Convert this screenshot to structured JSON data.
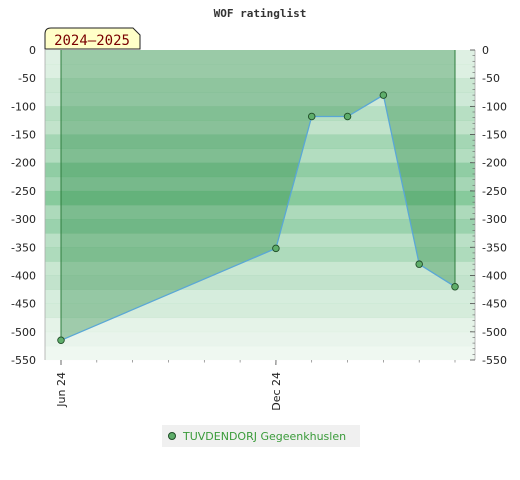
{
  "chart_data": {
    "type": "area",
    "title": "WOF ratinglist",
    "season_label": "2024–2025",
    "ylim": [
      -550,
      0
    ],
    "yticks": [
      0,
      -50,
      -100,
      -150,
      -200,
      -250,
      -300,
      -350,
      -400,
      -450,
      -500,
      -550
    ],
    "x_tick_labels": [
      "Jun 24",
      "Dec 24"
    ],
    "series": [
      {
        "name": "TUVDENDORJ Gegeenkhuslen",
        "x": [
          "2024-06",
          "2024-12",
          "2025-01",
          "2025-02",
          "2025-03",
          "2025-04",
          "2025-05"
        ],
        "values": [
          -515,
          -352,
          -118,
          -118,
          -80,
          -380,
          -420
        ]
      }
    ],
    "colors": {
      "line": "#5aa7d6",
      "marker": "#5fae6b",
      "marker_edge": "#1f4d27",
      "fill": "#2e8b46",
      "band_dark": "#7cc493",
      "band_light": "#f4faf5",
      "legend_text": "#3a9b3a"
    },
    "legend": {
      "position": "bottom"
    },
    "grid": true
  }
}
